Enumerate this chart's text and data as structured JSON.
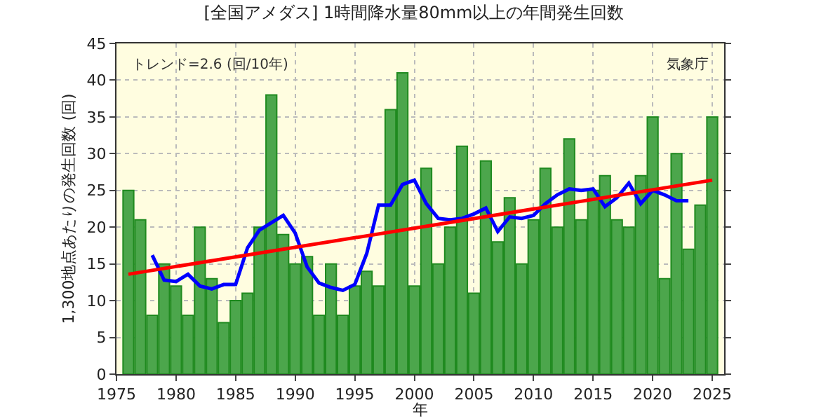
{
  "chart_data": {
    "type": "bar",
    "title": "[全国アメダス] 1時間降水量80mm以上の年間発生回数",
    "xlabel": "年",
    "ylabel": "1,300地点あたりの発生回数 (回)",
    "annotations": [
      "トレンド=2.6 (回/10年)",
      "気象庁"
    ],
    "x": [
      1976,
      1977,
      1978,
      1979,
      1980,
      1981,
      1982,
      1983,
      1984,
      1985,
      1986,
      1987,
      1988,
      1989,
      1990,
      1991,
      1992,
      1993,
      1994,
      1995,
      1996,
      1997,
      1998,
      1999,
      2000,
      2001,
      2002,
      2003,
      2004,
      2005,
      2006,
      2007,
      2008,
      2009,
      2010,
      2011,
      2012,
      2013,
      2014,
      2015,
      2016,
      2017,
      2018,
      2019,
      2020,
      2021,
      2022,
      2023,
      2024,
      2025
    ],
    "series": [
      {
        "color": "#4ca64c",
        "values": [
          25,
          21,
          8,
          15,
          12,
          8,
          20,
          13,
          7,
          10,
          11,
          20,
          38,
          19,
          15,
          16,
          8,
          15,
          8,
          12,
          14,
          12,
          36,
          41,
          12,
          28,
          15,
          20,
          31,
          11,
          29,
          18,
          24,
          15,
          21,
          28,
          20,
          32,
          21,
          25,
          27,
          21,
          20,
          27,
          35,
          13,
          30,
          17,
          23,
          35
        ]
      },
      {
        "type": "line",
        "color": "#0000ff",
        "x": [
          1978,
          1979,
          1980,
          1981,
          1982,
          1983,
          1984,
          1985,
          1986,
          1987,
          1988,
          1989,
          1990,
          1991,
          1992,
          1993,
          1994,
          1995,
          1996,
          1997,
          1998,
          1999,
          2000,
          2001,
          2002,
          2003,
          2004,
          2005,
          2006,
          2007,
          2008,
          2009,
          2010,
          2011,
          2012,
          2013,
          2014,
          2015,
          2016,
          2017,
          2018,
          2019,
          2020,
          2021,
          2022,
          2023
        ],
        "values": [
          16.2,
          12.8,
          12.6,
          13.6,
          12,
          11.6,
          12.2,
          12.2,
          17.2,
          19.6,
          20.6,
          21.6,
          19.2,
          14.6,
          12.4,
          11.8,
          11.4,
          12.2,
          16.4,
          23,
          23,
          25.8,
          26.4,
          23.2,
          21.2,
          21,
          21.2,
          21.8,
          22.6,
          19.4,
          21.4,
          21.2,
          21.6,
          23.2,
          24.4,
          25.2,
          25,
          25.2,
          22.8,
          24,
          26,
          23.2,
          25,
          24.4,
          23.6,
          23.6
        ]
      },
      {
        "type": "line",
        "color": "#ff0000",
        "x": [
          1976,
          2025
        ],
        "values": [
          13.6,
          26.4
        ]
      }
    ],
    "xlim": [
      1975,
      2026
    ],
    "xticks": [
      1975,
      1980,
      1985,
      1990,
      1995,
      2000,
      2005,
      2010,
      2015,
      2020,
      2025
    ],
    "ylim": [
      0,
      45
    ],
    "yticks": [
      0,
      5,
      10,
      15,
      20,
      25,
      30,
      35,
      40,
      45
    ],
    "grid": true,
    "legend": false
  }
}
